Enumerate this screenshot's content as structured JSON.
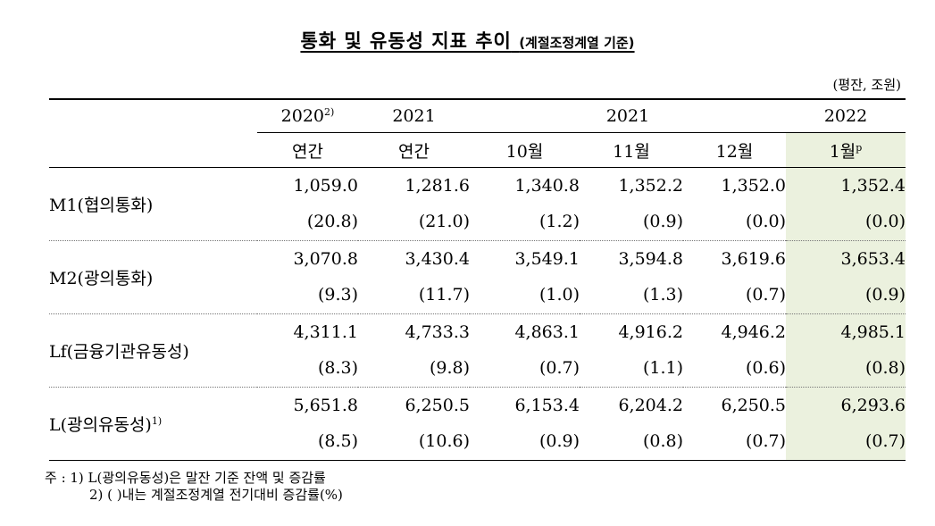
{
  "title": {
    "main": "통화 및 유동성 지표 추이",
    "sub": "(계절조정계열 기준)"
  },
  "unit": "(평잔, 조원)",
  "header": {
    "row1": [
      "2020",
      "2021",
      "2021",
      "2022"
    ],
    "row1_2020_sup": "2)",
    "row2": [
      "연간",
      "연간",
      "10월",
      "11월",
      "12월",
      "1월"
    ],
    "row2_last_sup": "p"
  },
  "rows": [
    {
      "label": "M1(협의통화)",
      "sup": "",
      "values": [
        "1,059.0",
        "1,281.6",
        "1,340.8",
        "1,352.2",
        "1,352.0",
        "1,352.4"
      ],
      "changes": [
        "(20.8)",
        "(21.0)",
        "(1.2)",
        "(0.9)",
        "(0.0)",
        "(0.0)"
      ]
    },
    {
      "label": "M2(광의통화)",
      "sup": "",
      "values": [
        "3,070.8",
        "3,430.4",
        "3,549.1",
        "3,594.8",
        "3,619.6",
        "3,653.4"
      ],
      "changes": [
        "(9.3)",
        "(11.7)",
        "(1.0)",
        "(1.3)",
        "(0.7)",
        "(0.9)"
      ]
    },
    {
      "label": "Lf(금융기관유동성)",
      "sup": "",
      "values": [
        "4,311.1",
        "4,733.3",
        "4,863.1",
        "4,916.2",
        "4,946.2",
        "4,985.1"
      ],
      "changes": [
        "(8.3)",
        "(9.8)",
        "(0.7)",
        "(1.1)",
        "(0.6)",
        "(0.8)"
      ]
    },
    {
      "label": "L(광의유동성)",
      "sup": "1)",
      "values": [
        "5,651.8",
        "6,250.5",
        "6,153.4",
        "6,204.2",
        "6,250.5",
        "6,293.6"
      ],
      "changes": [
        "(8.5)",
        "(10.6)",
        "(0.9)",
        "(0.8)",
        "(0.7)",
        "(0.7)"
      ]
    }
  ],
  "notes": {
    "line1": "주 : 1) L(광의유동성)은 말잔 기준 잔액 및 증감률",
    "line2": "2) (    )내는 계절조정계열 전기대비 증감률(%)"
  },
  "colors": {
    "highlight": "#ebf1de",
    "rule": "#000000",
    "dotted_rule": "#777777"
  }
}
